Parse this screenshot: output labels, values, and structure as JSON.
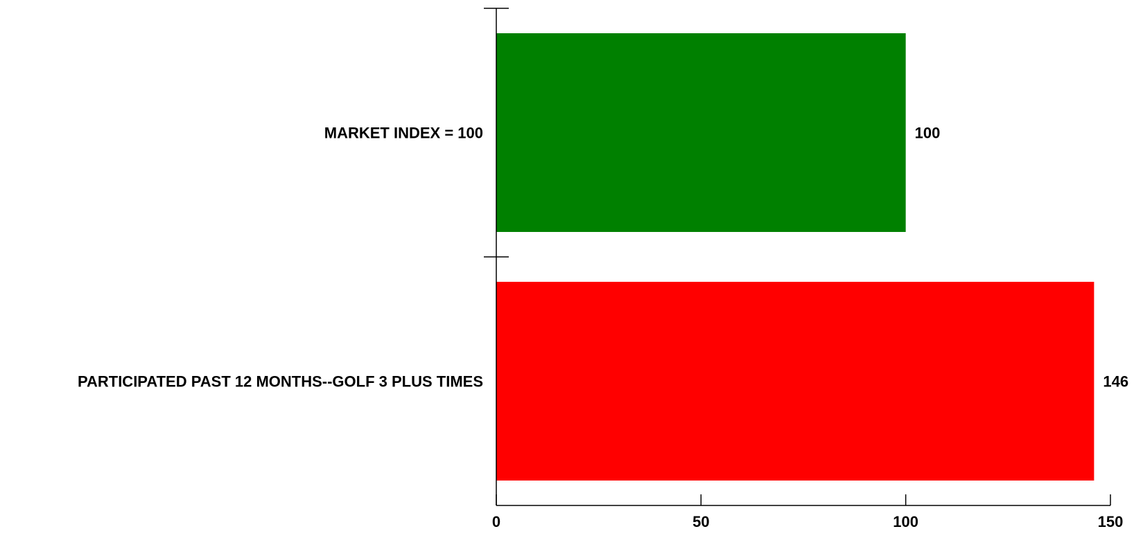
{
  "chart_data": {
    "type": "bar",
    "orientation": "horizontal",
    "categories": [
      "MARKET INDEX = 100",
      "PARTICIPATED PAST 12 MONTHS--GOLF 3 PLUS TIMES"
    ],
    "values": [
      100,
      146
    ],
    "data_labels": [
      "100",
      "146"
    ],
    "bar_colors": [
      "#008000",
      "#ff0000"
    ],
    "xlim": [
      0,
      150
    ],
    "x_ticks": [
      {
        "value": 0,
        "label": "0"
      },
      {
        "value": 50,
        "label": "50"
      },
      {
        "value": 100,
        "label": "100"
      },
      {
        "value": 150,
        "label": "150"
      }
    ],
    "grid": false,
    "legend": "none",
    "title": "",
    "xlabel": "",
    "ylabel": ""
  }
}
